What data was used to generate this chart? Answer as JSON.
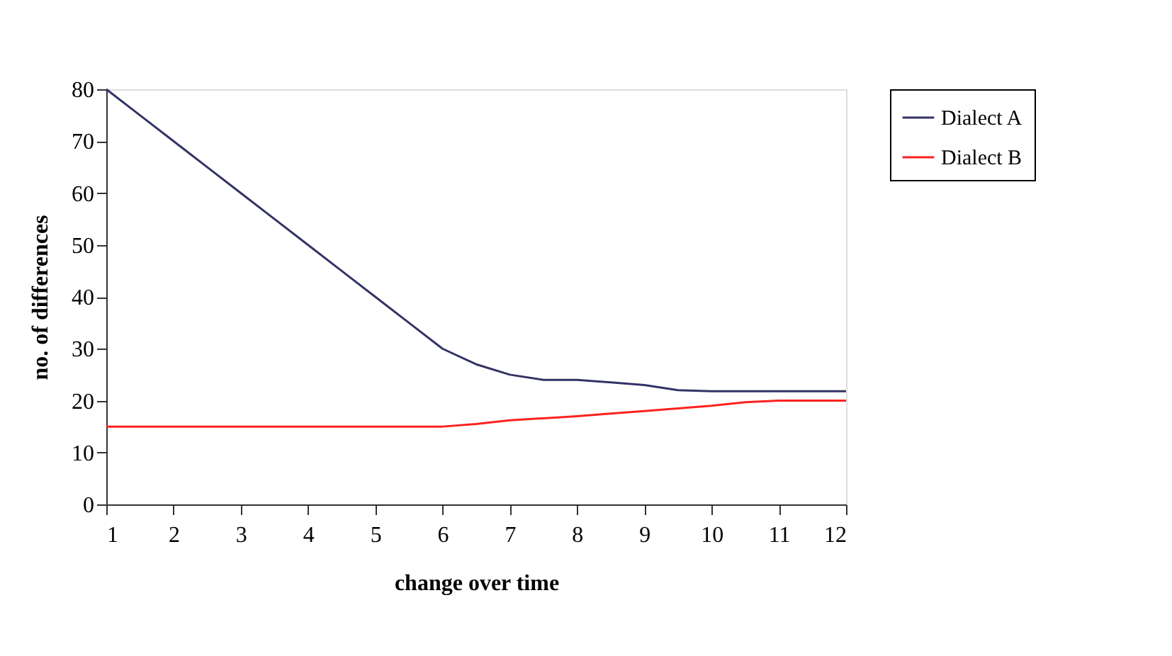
{
  "chart_data": {
    "type": "line",
    "xlabel": "change over time",
    "ylabel": "no. of differences",
    "x": [
      1,
      1.5,
      2,
      2.5,
      3,
      3.5,
      4,
      4.5,
      5,
      5.5,
      6,
      6.5,
      7,
      7.5,
      8,
      8.5,
      9,
      9.5,
      10,
      10.5,
      11,
      11.5,
      12
    ],
    "series": [
      {
        "name": "Dialect A",
        "color": "#333366",
        "values": [
          80,
          75,
          70,
          65,
          60,
          55,
          50,
          45,
          40,
          35,
          30,
          27,
          25,
          24,
          24,
          23.5,
          23,
          22,
          21.8,
          21.8,
          21.8,
          21.8,
          21.8
        ]
      },
      {
        "name": "Dialect B",
        "color": "#ff2020",
        "values": [
          15,
          15,
          15,
          15,
          15,
          15,
          15,
          15,
          15,
          15,
          15,
          15.5,
          16.2,
          16.6,
          17,
          17.5,
          18,
          18.5,
          19,
          19.7,
          20,
          20,
          20
        ]
      }
    ],
    "xlim": [
      1,
      12
    ],
    "xticks": [
      1,
      2,
      3,
      4,
      5,
      6,
      7,
      8,
      9,
      10,
      11,
      12
    ],
    "ylim": [
      0,
      80
    ],
    "yticks": [
      0,
      10,
      20,
      30,
      40,
      50,
      60,
      70,
      80
    ],
    "grid": false,
    "legend": "right",
    "marker": "none",
    "line_style": "solid"
  }
}
